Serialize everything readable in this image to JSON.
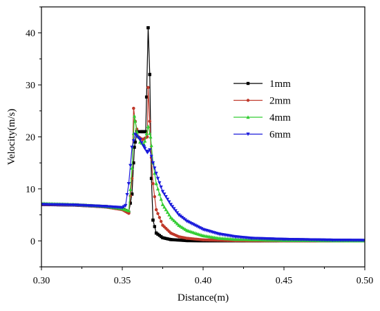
{
  "chart_data": {
    "type": "line",
    "xlabel": "Distance(m)",
    "ylabel": "Velocity(m/s)",
    "xlim": [
      0.3,
      0.5
    ],
    "ylim": [
      -5,
      45
    ],
    "xticks": [
      "0.30",
      "0.35",
      "0.40",
      "0.45",
      "0.50"
    ],
    "yticks": [
      "0",
      "10",
      "20",
      "30",
      "40"
    ],
    "grid": false,
    "legend_position": "center-right",
    "series": [
      {
        "name": "1mm",
        "color": "#000000",
        "marker": "square",
        "points": [
          [
            0.3,
            7.0
          ],
          [
            0.32,
            6.9
          ],
          [
            0.34,
            6.6
          ],
          [
            0.35,
            6.2
          ],
          [
            0.354,
            5.5
          ],
          [
            0.356,
            9.0
          ],
          [
            0.3575,
            18.0
          ],
          [
            0.359,
            21.0
          ],
          [
            0.3625,
            21.0
          ],
          [
            0.3645,
            21.0
          ],
          [
            0.366,
            41.0
          ],
          [
            0.367,
            32.0
          ],
          [
            0.368,
            12.0
          ],
          [
            0.369,
            4.0
          ],
          [
            0.371,
            1.5
          ],
          [
            0.375,
            0.6
          ],
          [
            0.38,
            0.25
          ],
          [
            0.39,
            0.05
          ],
          [
            0.4,
            0.0
          ],
          [
            0.5,
            0.0
          ]
        ]
      },
      {
        "name": "2mm",
        "color": "#c0392b",
        "marker": "circle",
        "points": [
          [
            0.3,
            7.0
          ],
          [
            0.32,
            6.9
          ],
          [
            0.34,
            6.5
          ],
          [
            0.35,
            6.0
          ],
          [
            0.354,
            5.3
          ],
          [
            0.356,
            12.0
          ],
          [
            0.357,
            25.5
          ],
          [
            0.358,
            23.0
          ],
          [
            0.36,
            20.0
          ],
          [
            0.3625,
            19.5
          ],
          [
            0.3655,
            20.0
          ],
          [
            0.366,
            29.5
          ],
          [
            0.367,
            23.0
          ],
          [
            0.368,
            16.0
          ],
          [
            0.369,
            11.0
          ],
          [
            0.371,
            6.0
          ],
          [
            0.375,
            3.0
          ],
          [
            0.38,
            1.5
          ],
          [
            0.385,
            0.8
          ],
          [
            0.39,
            0.5
          ],
          [
            0.4,
            0.2
          ],
          [
            0.42,
            0.05
          ],
          [
            0.45,
            0.0
          ],
          [
            0.5,
            0.0
          ]
        ]
      },
      {
        "name": "4mm",
        "color": "#33cc33",
        "marker": "triangle-up",
        "points": [
          [
            0.3,
            7.2
          ],
          [
            0.32,
            7.0
          ],
          [
            0.34,
            6.6
          ],
          [
            0.35,
            6.2
          ],
          [
            0.354,
            5.8
          ],
          [
            0.356,
            14.0
          ],
          [
            0.3575,
            24.0
          ],
          [
            0.359,
            21.0
          ],
          [
            0.361,
            19.0
          ],
          [
            0.3635,
            18.5
          ],
          [
            0.366,
            22.0
          ],
          [
            0.3675,
            20.0
          ],
          [
            0.369,
            15.0
          ],
          [
            0.371,
            11.0
          ],
          [
            0.375,
            7.0
          ],
          [
            0.38,
            4.5
          ],
          [
            0.385,
            3.0
          ],
          [
            0.39,
            2.0
          ],
          [
            0.4,
            1.0
          ],
          [
            0.41,
            0.5
          ],
          [
            0.42,
            0.3
          ],
          [
            0.45,
            0.1
          ],
          [
            0.5,
            0.0
          ]
        ]
      },
      {
        "name": "6mm",
        "color": "#1a1adb",
        "marker": "triangle-down",
        "points": [
          [
            0.3,
            7.0
          ],
          [
            0.32,
            6.9
          ],
          [
            0.34,
            6.6
          ],
          [
            0.35,
            6.4
          ],
          [
            0.352,
            6.8
          ],
          [
            0.354,
            11.0
          ],
          [
            0.356,
            18.0
          ],
          [
            0.358,
            20.5
          ],
          [
            0.361,
            19.5
          ],
          [
            0.3635,
            18.0
          ],
          [
            0.3655,
            17.0
          ],
          [
            0.367,
            17.5
          ],
          [
            0.369,
            15.0
          ],
          [
            0.372,
            12.0
          ],
          [
            0.375,
            9.5
          ],
          [
            0.38,
            7.0
          ],
          [
            0.385,
            5.0
          ],
          [
            0.39,
            3.8
          ],
          [
            0.4,
            2.2
          ],
          [
            0.41,
            1.3
          ],
          [
            0.42,
            0.8
          ],
          [
            0.43,
            0.5
          ],
          [
            0.45,
            0.3
          ],
          [
            0.48,
            0.15
          ],
          [
            0.5,
            0.1
          ]
        ]
      }
    ]
  }
}
